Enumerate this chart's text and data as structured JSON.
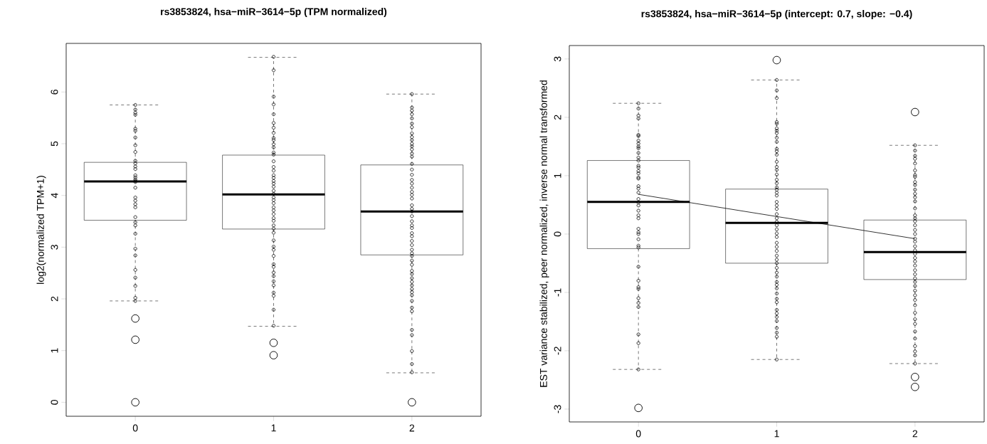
{
  "chart_data": [
    {
      "type": "box",
      "title": "rs3853824, hsa−miR−3614−5p (TPM normalized)",
      "ylabel": "log2(normalized TPM+1)",
      "categories": [
        "0",
        "1",
        "2"
      ],
      "color": "#000000",
      "boxes": [
        {
          "low": 1.96,
          "q1": 3.52,
          "median": 4.27,
          "q3": 4.64,
          "high": 5.75,
          "outliers": [
            1.62,
            1.21,
            0
          ]
        },
        {
          "low": 1.47,
          "q1": 3.35,
          "median": 4.02,
          "q3": 4.78,
          "high": 6.67,
          "outliers": [
            1.15,
            0.91
          ]
        },
        {
          "low": 0.57,
          "q1": 2.85,
          "median": 3.69,
          "q3": 4.59,
          "high": 5.96,
          "outliers": [
            0
          ]
        }
      ],
      "series": [
        {
          "type": "scatter",
          "marker": "circle",
          "color": "#000000",
          "x": [
            "0",
            "0",
            "0",
            "0",
            "0",
            "0",
            "0",
            "0",
            "0",
            "0",
            "0",
            "0",
            "0",
            "0",
            "0",
            "0",
            "0",
            "0",
            "0",
            "0",
            "0",
            "0",
            "0",
            "0",
            "0",
            "0",
            "0",
            "0",
            "0",
            "0",
            "0",
            "0",
            "0",
            "0",
            "1",
            "1",
            "1",
            "1",
            "1",
            "1",
            "1",
            "1",
            "1",
            "1",
            "1",
            "1",
            "1",
            "1",
            "1",
            "1",
            "1",
            "1",
            "1",
            "1",
            "1",
            "1",
            "1",
            "1",
            "1",
            "1",
            "1",
            "1",
            "1",
            "1",
            "1",
            "1",
            "1",
            "1",
            "1",
            "1",
            "1",
            "1",
            "1",
            "1",
            "1",
            "1",
            "1",
            "1",
            "1",
            "1",
            "1",
            "1",
            "1",
            "2",
            "2",
            "2",
            "2",
            "2",
            "2",
            "2",
            "2",
            "2",
            "2",
            "2",
            "2",
            "2",
            "2",
            "2",
            "2",
            "2",
            "2",
            "2",
            "2",
            "2",
            "2",
            "2",
            "2",
            "2",
            "2",
            "2",
            "2",
            "2",
            "2",
            "2",
            "2",
            "2",
            "2",
            "2",
            "2",
            "2",
            "2",
            "2",
            "2",
            "2",
            "2",
            "2",
            "2",
            "2",
            "2",
            "2",
            "2",
            "2",
            "2",
            "2",
            "2",
            "2",
            "2",
            "2",
            "2"
          ],
          "values": [
            5.75,
            5.66,
            5.6,
            5.56,
            5.29,
            5.25,
            5.12,
            4.97,
            4.84,
            4.67,
            4.62,
            4.56,
            4.51,
            4.39,
            4.35,
            4.31,
            4.28,
            4.26,
            4.15,
            3.96,
            3.9,
            3.83,
            3.77,
            3.58,
            3.48,
            3.42,
            3.26,
            2.97,
            2.84,
            2.56,
            2.41,
            2.25,
            2.02,
            1.96,
            6.68,
            6.42,
            5.91,
            5.76,
            5.57,
            5.4,
            5.31,
            5.21,
            5.11,
            5.07,
            4.99,
            4.93,
            4.83,
            4.79,
            4.66,
            4.55,
            4.48,
            4.39,
            4.34,
            4.28,
            4.23,
            4.17,
            4.09,
            4.03,
            3.96,
            3.91,
            3.85,
            3.77,
            3.71,
            3.64,
            3.56,
            3.51,
            3.42,
            3.36,
            3.28,
            3.13,
            3.01,
            2.95,
            2.83,
            2.67,
            2.62,
            2.51,
            2.44,
            2.34,
            2.26,
            2.12,
            2.06,
            1.79,
            1.48,
            5.96,
            5.7,
            5.64,
            5.57,
            5.49,
            5.39,
            5.32,
            5.2,
            5.13,
            5.07,
            5.0,
            4.95,
            4.89,
            4.81,
            4.75,
            4.61,
            4.5,
            4.4,
            4.3,
            4.23,
            4.15,
            4.07,
            4.01,
            3.94,
            3.81,
            3.74,
            3.69,
            3.6,
            3.5,
            3.42,
            3.37,
            3.27,
            3.21,
            3.12,
            3.04,
            2.95,
            2.88,
            2.83,
            2.74,
            2.66,
            2.54,
            2.48,
            2.4,
            2.33,
            2.26,
            2.19,
            2.13,
            2.07,
            1.96,
            1.83,
            1.76,
            1.4,
            1.3,
            0.99,
            0.74,
            0.58
          ]
        }
      ],
      "ylim": [
        -0.27,
        6.94
      ],
      "yticks": [
        0,
        1,
        2,
        3,
        4,
        5,
        6
      ]
    },
    {
      "type": "box",
      "title": "rs3853824, hsa−miR−3614−5p (intercept: 0.7, slope: −0.4)",
      "ylabel": "EST variance stabilized, peer normalized, inverse normal transformed",
      "categories": [
        "0",
        "1",
        "2"
      ],
      "color": "#000000",
      "boxes": [
        {
          "low": -2.32,
          "q1": -0.25,
          "median": 0.55,
          "q3": 1.26,
          "high": 2.24,
          "outliers": [
            -2.98
          ]
        },
        {
          "low": -2.15,
          "q1": -0.5,
          "median": 0.19,
          "q3": 0.77,
          "high": 2.64,
          "outliers": [
            2.98
          ]
        },
        {
          "low": -2.22,
          "q1": -0.78,
          "median": -0.31,
          "q3": 0.24,
          "high": 1.52,
          "outliers": [
            2.09,
            -2.45,
            -2.62
          ]
        }
      ],
      "series": [
        {
          "type": "scatter",
          "marker": "circle",
          "color": "#000000",
          "x": [
            "0",
            "0",
            "0",
            "0",
            "0",
            "0",
            "0",
            "0",
            "0",
            "0",
            "0",
            "0",
            "0",
            "0",
            "0",
            "0",
            "0",
            "0",
            "0",
            "0",
            "0",
            "0",
            "0",
            "0",
            "0",
            "0",
            "0",
            "0",
            "0",
            "0",
            "0",
            "0",
            "0",
            "0",
            "0",
            "0",
            "0",
            "0",
            "0",
            "0",
            "0",
            "0",
            "0",
            "0",
            "1",
            "1",
            "1",
            "1",
            "1",
            "1",
            "1",
            "1",
            "1",
            "1",
            "1",
            "1",
            "1",
            "1",
            "1",
            "1",
            "1",
            "1",
            "1",
            "1",
            "1",
            "1",
            "1",
            "1",
            "1",
            "1",
            "1",
            "1",
            "1",
            "1",
            "1",
            "1",
            "1",
            "1",
            "1",
            "1",
            "1",
            "1",
            "1",
            "1",
            "1",
            "1",
            "1",
            "1",
            "1",
            "1",
            "1",
            "1",
            "1",
            "1",
            "1",
            "1",
            "1",
            "1",
            "1",
            "1",
            "2",
            "2",
            "2",
            "2",
            "2",
            "2",
            "2",
            "2",
            "2",
            "2",
            "2",
            "2",
            "2",
            "2",
            "2",
            "2",
            "2",
            "2",
            "2",
            "2",
            "2",
            "2",
            "2",
            "2",
            "2",
            "2",
            "2",
            "2",
            "2",
            "2",
            "2",
            "2",
            "2",
            "2",
            "2",
            "2",
            "2",
            "2",
            "2",
            "2",
            "2",
            "2",
            "2",
            "2",
            "2",
            "2",
            "2"
          ],
          "values": [
            2.24,
            2.15,
            2.03,
            1.98,
            1.7,
            1.68,
            1.6,
            1.55,
            1.5,
            1.47,
            1.39,
            1.31,
            1.26,
            1.17,
            1.14,
            1.08,
            1.04,
            0.97,
            0.95,
            0.82,
            0.78,
            0.71,
            0.6,
            0.54,
            0.49,
            0.4,
            0.32,
            0.27,
            0.09,
            0.03,
            0,
            -0.09,
            -0.2,
            -0.23,
            -0.56,
            -0.8,
            -0.91,
            -0.94,
            -1.1,
            -1.18,
            -1.25,
            -1.72,
            -1.87,
            -2.32,
            2.64,
            2.46,
            2.33,
            1.92,
            1.89,
            1.81,
            1.77,
            1.73,
            1.65,
            1.58,
            1.46,
            1.42,
            1.36,
            1.24,
            1.15,
            1.1,
            1.02,
            0.93,
            0.87,
            0.8,
            0.76,
            0.71,
            0.66,
            0.55,
            0.49,
            0.43,
            0.34,
            0.27,
            0.21,
            0.15,
            0.08,
            0.01,
            -0.05,
            -0.15,
            -0.22,
            -0.29,
            -0.37,
            -0.44,
            -0.5,
            -0.58,
            -0.66,
            -0.73,
            -0.82,
            -0.87,
            -0.93,
            -1.02,
            -1.11,
            -1.17,
            -1.3,
            -1.36,
            -1.42,
            -1.49,
            -1.61,
            -1.69,
            -1.76,
            -2.15,
            1.52,
            1.43,
            1.34,
            1.29,
            1.21,
            1.09,
            1.01,
            0.98,
            0.89,
            0.84,
            0.76,
            0.69,
            0.63,
            0.56,
            0.44,
            0.32,
            0.27,
            0.22,
            0.15,
            0.07,
            0,
            -0.08,
            -0.13,
            -0.21,
            -0.28,
            -0.34,
            -0.41,
            -0.47,
            -0.54,
            -0.62,
            -0.69,
            -0.76,
            -0.82,
            -0.89,
            -0.97,
            -1.05,
            -1.13,
            -1.22,
            -1.35,
            -1.46,
            -1.54,
            -1.67,
            -1.79,
            -1.92,
            -2.01,
            -2.08,
            -2.22
          ]
        },
        {
          "type": "line",
          "color": "#000000",
          "x": [
            "0",
            "2"
          ],
          "values": [
            0.68,
            -0.08
          ]
        }
      ],
      "ylim": [
        -3.22,
        3.23
      ],
      "yticks": [
        -3,
        -2,
        -1,
        0,
        1,
        2,
        3
      ]
    }
  ]
}
